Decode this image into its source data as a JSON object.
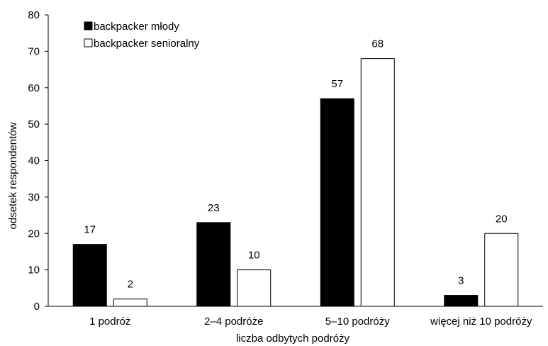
{
  "chart_data": {
    "type": "bar",
    "title": "",
    "xlabel": "liczba odbytych podróży",
    "ylabel": "odsetek respondentów",
    "categories": [
      "1 podróż",
      "2–4 podróże",
      "5–10 podróży",
      "więcej niż 10 podróży"
    ],
    "series": [
      {
        "name": "backpacker młody",
        "values": [
          17,
          23,
          57,
          3
        ],
        "fill": "#000000"
      },
      {
        "name": "backpacker senioralny",
        "values": [
          2,
          10,
          68,
          20
        ],
        "fill": "#ffffff"
      }
    ],
    "ylim": [
      0,
      80
    ],
    "yticks": [
      0,
      10,
      20,
      30,
      40,
      50,
      60,
      70,
      80
    ],
    "grid": false,
    "legend_position": "top-left",
    "data_labels": true
  }
}
